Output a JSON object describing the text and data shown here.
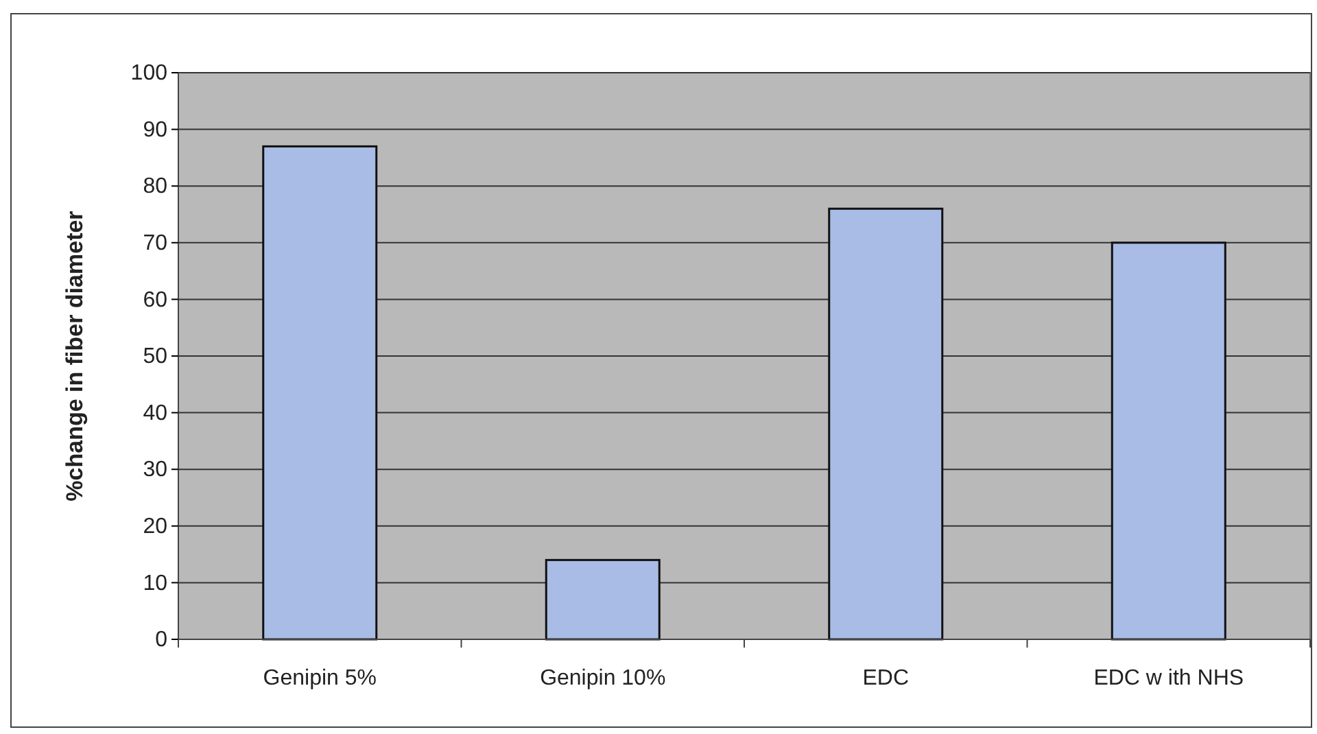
{
  "chart_data": {
    "type": "bar",
    "ylabel": "%change in fiber diameter",
    "categories": [
      "Genipin 5%",
      "Genipin 10%",
      "EDC",
      "EDC w ith NHS"
    ],
    "values": [
      87,
      14,
      76,
      70
    ],
    "color": "#a8bce6",
    "ylim": [
      0,
      100
    ],
    "yticks": [
      0,
      10,
      20,
      30,
      40,
      50,
      60,
      70,
      80,
      90,
      100
    ],
    "grid": "y"
  }
}
